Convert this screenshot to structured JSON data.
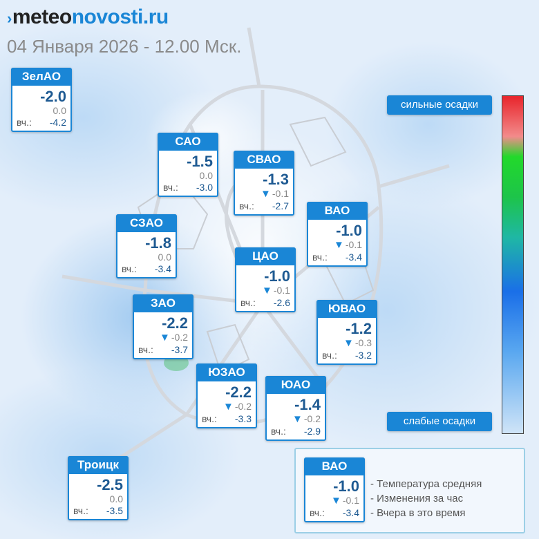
{
  "header": {
    "logo_mark": "›",
    "logo_part1": "meteo",
    "logo_part2": "novosti.ru",
    "subtitle": "04 Января 2026 - 12.00 Мск."
  },
  "colors": {
    "accent": "#1a86d6",
    "temp_text": "#1e5a92"
  },
  "districts": [
    {
      "name": "ЗелАО",
      "temp": "-2.0",
      "change": "0.0",
      "change_dir": "none",
      "yest_label": "вч.:",
      "yesterday": "-4.2"
    },
    {
      "name": "САО",
      "temp": "-1.5",
      "change": "0.0",
      "change_dir": "none",
      "yest_label": "вч.:",
      "yesterday": "-3.0"
    },
    {
      "name": "СВАО",
      "temp": "-1.3",
      "change": "-0.1",
      "change_dir": "down",
      "yest_label": "вч.:",
      "yesterday": "-2.7"
    },
    {
      "name": "ВАО",
      "temp": "-1.0",
      "change": "-0.1",
      "change_dir": "down",
      "yest_label": "вч.:",
      "yesterday": "-3.4"
    },
    {
      "name": "СЗАО",
      "temp": "-1.8",
      "change": "0.0",
      "change_dir": "none",
      "yest_label": "вч.:",
      "yesterday": "-3.4"
    },
    {
      "name": "ЦАО",
      "temp": "-1.0",
      "change": "-0.1",
      "change_dir": "down",
      "yest_label": "вч.:",
      "yesterday": "-2.6"
    },
    {
      "name": "ЗАО",
      "temp": "-2.2",
      "change": "-0.2",
      "change_dir": "down",
      "yest_label": "вч.:",
      "yesterday": "-3.7"
    },
    {
      "name": "ЮВАО",
      "temp": "-1.2",
      "change": "-0.3",
      "change_dir": "down",
      "yest_label": "вч.:",
      "yesterday": "-3.2"
    },
    {
      "name": "ЮЗАО",
      "temp": "-2.2",
      "change": "-0.2",
      "change_dir": "down",
      "yest_label": "вч.:",
      "yesterday": "-3.3"
    },
    {
      "name": "ЮАО",
      "temp": "-1.4",
      "change": "-0.2",
      "change_dir": "down",
      "yest_label": "вч.:",
      "yesterday": "-2.9"
    },
    {
      "name": "Троицк",
      "temp": "-2.5",
      "change": "0.0",
      "change_dir": "none",
      "yest_label": "вч.:",
      "yesterday": "-3.5"
    }
  ],
  "scale": {
    "top_label": "сильные осадки",
    "bottom_label": "слабые осадки"
  },
  "legend": {
    "sample": {
      "name": "ВАО",
      "temp": "-1.0",
      "change": "-0.1",
      "change_dir": "down",
      "yest_label": "вч.:",
      "yesterday": "-3.4"
    },
    "line1": "- Температура средняя",
    "line2": "- Изменения за час",
    "line3": "- Вчера в это время"
  }
}
